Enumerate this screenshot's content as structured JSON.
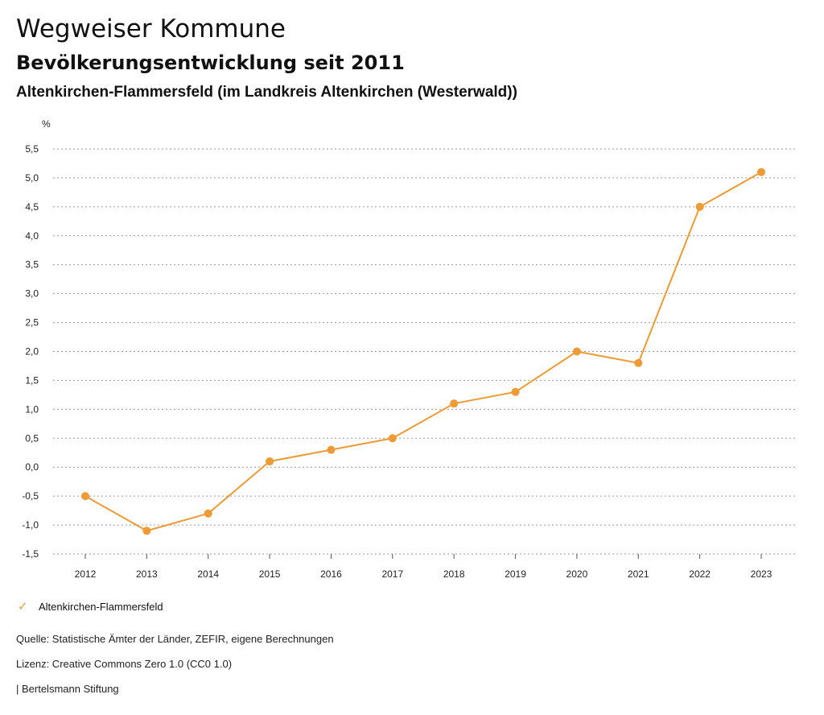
{
  "header": {
    "title": "Wegweiser Kommune",
    "subtitle": "Bevölkerungsentwicklung seit 2011",
    "region": "Altenkirchen-Flammersfeld (im Landkreis Altenkirchen (Westerwald))"
  },
  "chart_data": {
    "type": "line",
    "ylabel": "%",
    "ylim": [
      -1.5,
      5.5
    ],
    "yticks": [
      "5,5",
      "5,0",
      "4,5",
      "4,0",
      "3,5",
      "3,0",
      "2,5",
      "2,0",
      "1,5",
      "1,0",
      "0,5",
      "0,0",
      "-0,5",
      "-1,0",
      "-1,5"
    ],
    "categories": [
      "2012",
      "2013",
      "2014",
      "2015",
      "2016",
      "2017",
      "2018",
      "2019",
      "2020",
      "2021",
      "2022",
      "2023"
    ],
    "series": [
      {
        "name": "Altenkirchen-Flammersfeld",
        "color": "#ee9a35",
        "values": [
          -0.5,
          -1.1,
          -0.8,
          0.1,
          0.3,
          0.5,
          1.1,
          1.3,
          2.0,
          1.8,
          4.5,
          5.1
        ]
      }
    ],
    "grid": true,
    "legend_position": "bottom-left"
  },
  "legend": {
    "label": "Altenkirchen-Flammersfeld",
    "icon": "check-icon"
  },
  "footer": {
    "source": "Quelle: Statistische Ämter der Länder, ZEFIR, eigene Berechnungen",
    "license": "Lizenz: Creative Commons Zero 1.0 (CC0 1.0)",
    "publisher": "| Bertelsmann Stiftung"
  }
}
